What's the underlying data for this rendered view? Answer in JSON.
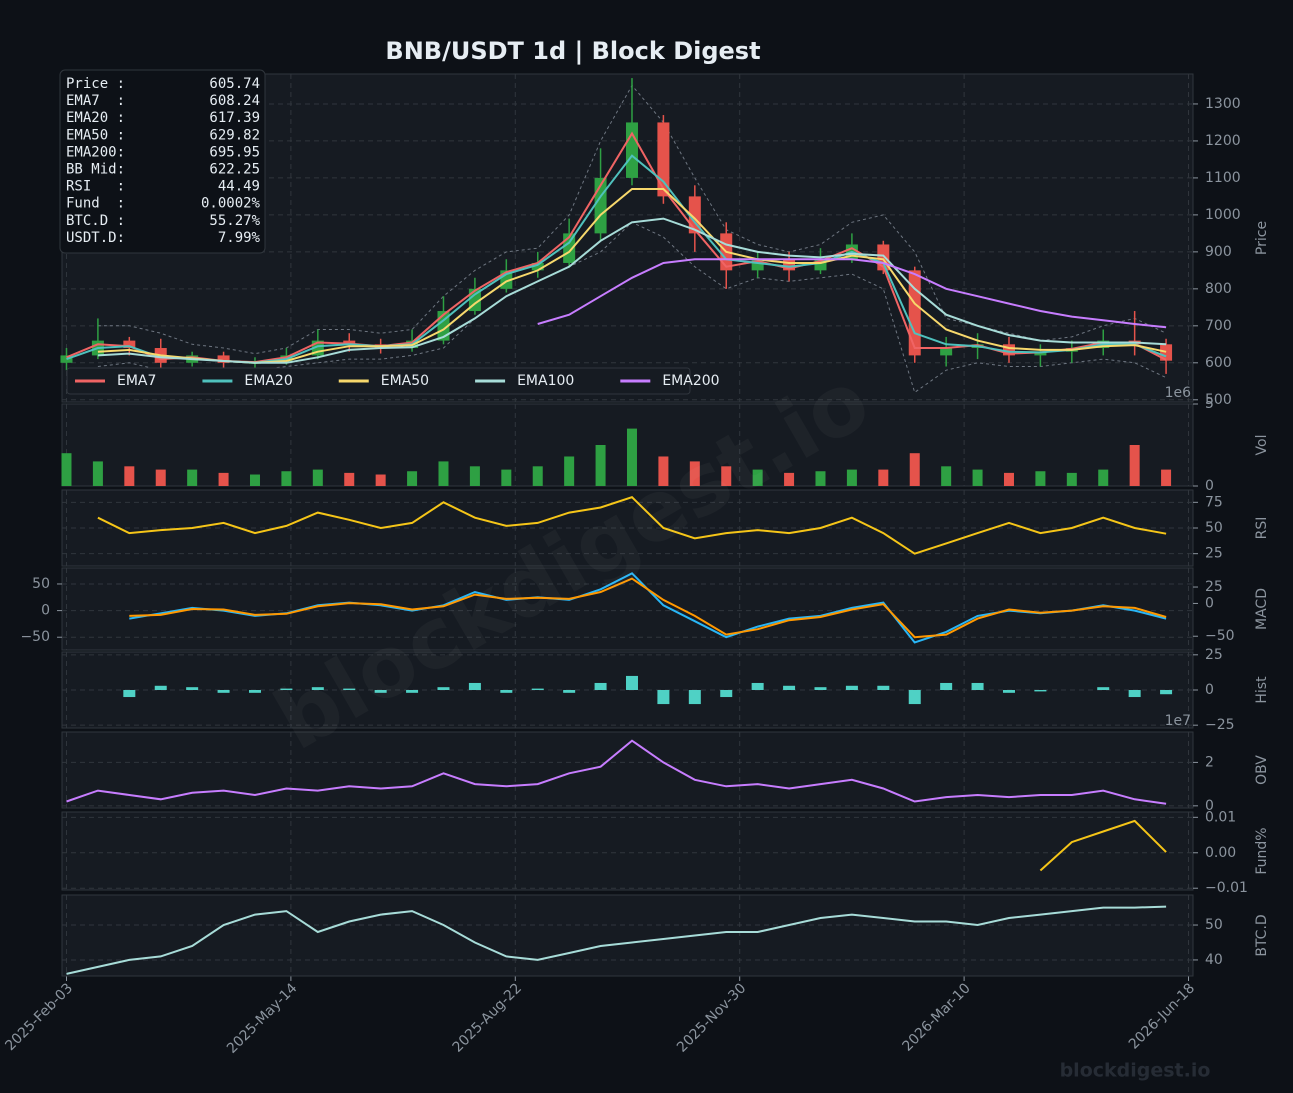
{
  "title": "BNB/USDT  1d  |  Block Digest",
  "watermark": "blockdigest.io",
  "x": [
    "2025-Feb-03",
    "2025-Feb-17",
    "2025-Mar-03",
    "2025-Mar-17",
    "2025-Mar-31",
    "2025-Apr-14",
    "2025-Apr-28",
    "2025-May-12",
    "2025-May-26",
    "2025-Jun-09",
    "2025-Jun-23",
    "2025-Jul-07",
    "2025-Jul-21",
    "2025-Aug-04",
    "2025-Aug-18",
    "2025-Sep-01",
    "2025-Sep-15",
    "2025-Sep-29",
    "2025-Oct-13",
    "2025-Oct-27",
    "2025-Nov-10",
    "2025-Nov-24",
    "2025-Dec-08",
    "2025-Dec-22",
    "2026-Jan-05",
    "2026-Jan-19",
    "2026-Feb-02",
    "2026-Feb-16",
    "2026-Mar-02",
    "2026-Mar-16",
    "2026-Mar-30",
    "2026-Apr-13",
    "2026-Apr-27",
    "2026-May-11",
    "2026-May-25",
    "2026-Jun-08"
  ],
  "xlim": [
    "2025-Feb-01",
    "2026-Jun-20"
  ],
  "xticks": [
    "2025-Feb-03",
    "2025-May-14",
    "2025-Aug-22",
    "2025-Nov-30",
    "2026-Mar-10",
    "2026-Jun-18"
  ],
  "info": [
    [
      "Price :",
      "605.74"
    ],
    [
      "EMA7  :",
      "608.24"
    ],
    [
      "EMA20 :",
      "617.39"
    ],
    [
      "EMA50 :",
      "629.82"
    ],
    [
      "EMA200:",
      "695.95"
    ],
    [
      "BB Mid:",
      "622.25"
    ],
    [
      "RSI   :",
      "44.49"
    ],
    [
      "Fund  :",
      "0.0002%"
    ],
    [
      "BTC.D :",
      "55.27%"
    ],
    [
      "USDT.D:",
      "7.99%"
    ]
  ],
  "chart_data": [
    {
      "type": "candlestick",
      "ylabel": "Price",
      "y_axis_side": "right",
      "grid": true,
      "legend": "lower left",
      "up_color": "#2ea043",
      "down_color": "#e5534b",
      "ylim": [
        494,
        1381
      ],
      "yticks": [
        500,
        600,
        700,
        800,
        900,
        1000,
        1100,
        1200,
        1300
      ],
      "open": [
        600,
        620,
        660,
        640,
        600,
        620,
        600,
        600,
        620,
        660,
        650,
        640,
        660,
        740,
        800,
        850,
        870,
        950,
        1100,
        1250,
        1050,
        950,
        850,
        880,
        850,
        880,
        920,
        850,
        620,
        640,
        650,
        620,
        630,
        640,
        660,
        650
      ],
      "high": [
        640,
        720,
        670,
        665,
        630,
        630,
        615,
        640,
        690,
        680,
        665,
        690,
        780,
        830,
        880,
        900,
        990,
        1180,
        1370,
        1270,
        1080,
        980,
        900,
        900,
        910,
        950,
        930,
        860,
        670,
        680,
        670,
        650,
        660,
        690,
        740,
        665
      ],
      "low": [
        580,
        610,
        620,
        585,
        590,
        585,
        585,
        595,
        610,
        630,
        625,
        630,
        650,
        730,
        790,
        830,
        860,
        930,
        1080,
        1030,
        900,
        800,
        830,
        820,
        840,
        870,
        840,
        600,
        590,
        610,
        600,
        590,
        600,
        620,
        620,
        570
      ],
      "close": [
        620,
        660,
        640,
        600,
        620,
        600,
        600,
        620,
        660,
        650,
        640,
        660,
        740,
        800,
        850,
        870,
        950,
        1100,
        1250,
        1050,
        950,
        850,
        880,
        850,
        880,
        920,
        850,
        620,
        640,
        650,
        620,
        630,
        640,
        660,
        650,
        605.74
      ],
      "bollinger": {
        "color": "#6e7681",
        "upper": [
          null,
          700,
          700,
          680,
          650,
          640,
          625,
          640,
          690,
          690,
          680,
          690,
          780,
          850,
          900,
          910,
          1000,
          1200,
          1350,
          1250,
          1100,
          960,
          920,
          900,
          920,
          980,
          1000,
          900,
          720,
          700,
          680,
          660,
          670,
          700,
          720,
          680
        ],
        "lower": [
          null,
          590,
          600,
          580,
          580,
          580,
          580,
          590,
          600,
          610,
          610,
          620,
          640,
          720,
          780,
          820,
          860,
          900,
          980,
          940,
          860,
          800,
          830,
          820,
          830,
          840,
          800,
          520,
          580,
          600,
          590,
          590,
          600,
          610,
          600,
          560
        ]
      },
      "series": [
        {
          "name": "EMA7",
          "color": "#f06464",
          "values": [
            615,
            650,
            645,
            610,
            615,
            605,
            602,
            615,
            655,
            652,
            645,
            655,
            730,
            795,
            845,
            870,
            940,
            1080,
            1220,
            1070,
            960,
            860,
            875,
            855,
            875,
            910,
            860,
            640,
            640,
            648,
            625,
            628,
            638,
            655,
            652,
            608.24
          ]
        },
        {
          "name": "EMA20",
          "color": "#4fc1bd",
          "values": [
            610,
            640,
            645,
            615,
            612,
            605,
            600,
            610,
            645,
            650,
            645,
            650,
            715,
            785,
            840,
            865,
            925,
            1050,
            1160,
            1090,
            980,
            880,
            870,
            860,
            870,
            900,
            870,
            680,
            650,
            645,
            630,
            628,
            635,
            650,
            650,
            617.39
          ]
        },
        {
          "name": "EMA50",
          "color": "#f7d86c",
          "values": [
            null,
            630,
            635,
            620,
            612,
            605,
            600,
            605,
            630,
            645,
            645,
            648,
            690,
            760,
            820,
            850,
            900,
            1000,
            1070,
            1070,
            990,
            900,
            880,
            870,
            870,
            890,
            880,
            760,
            690,
            660,
            640,
            635,
            635,
            645,
            648,
            629.82
          ]
        },
        {
          "name": "EMA100",
          "color": "#a7dcd8",
          "values": [
            null,
            620,
            625,
            615,
            610,
            605,
            600,
            600,
            615,
            635,
            640,
            642,
            670,
            720,
            780,
            820,
            860,
            930,
            980,
            990,
            960,
            920,
            900,
            890,
            885,
            895,
            890,
            800,
            730,
            700,
            675,
            660,
            655,
            655,
            655,
            650
          ]
        },
        {
          "name": "EMA200",
          "color": "#c77dff",
          "values": [
            null,
            null,
            null,
            null,
            null,
            null,
            null,
            null,
            null,
            null,
            null,
            null,
            null,
            null,
            null,
            705,
            730,
            780,
            830,
            870,
            880,
            880,
            880,
            880,
            880,
            880,
            870,
            840,
            800,
            780,
            760,
            740,
            725,
            715,
            705,
            695.95
          ]
        }
      ]
    },
    {
      "type": "volume",
      "ylabel": "Vol",
      "y_axis_side": "right",
      "grid": true,
      "offset_label": "1e6",
      "up_color": "#2ea043",
      "down_color": "#e5534b",
      "ylim": [
        0,
        5
      ],
      "yticks": [
        0,
        5
      ],
      "values": [
        2.0,
        1.5,
        1.2,
        1.0,
        1.0,
        0.8,
        0.7,
        0.9,
        1.0,
        0.8,
        0.7,
        0.9,
        1.5,
        1.2,
        1.0,
        1.2,
        1.8,
        2.5,
        3.5,
        1.8,
        1.5,
        1.2,
        1.0,
        0.8,
        0.9,
        1.0,
        1.0,
        2.0,
        1.2,
        1.0,
        0.8,
        0.9,
        0.8,
        1.0,
        2.5,
        1.0
      ]
    },
    {
      "type": "line",
      "ylabel": "RSI",
      "y_axis_side": "right",
      "grid": true,
      "ylim": [
        13,
        87
      ],
      "yticks": [
        25,
        50,
        75
      ],
      "series": [
        {
          "color": "#f5c518",
          "values": [
            null,
            60,
            45,
            48,
            50,
            55,
            45,
            52,
            65,
            58,
            50,
            55,
            75,
            60,
            52,
            55,
            65,
            70,
            80,
            50,
            40,
            45,
            48,
            45,
            50,
            60,
            45,
            25,
            35,
            45,
            55,
            45,
            50,
            60,
            50,
            44.49
          ]
        }
      ]
    },
    {
      "type": "line",
      "ylabel": "MACD",
      "y_axis_side": "left",
      "grid": true,
      "ylim": [
        -74,
        80
      ],
      "yticks": [
        50,
        0,
        {
          "value": -50,
          "label": "−50"
        }
      ],
      "y2lim": [
        -71,
        54
      ],
      "y2ticks": [
        25,
        0,
        {
          "value": -50,
          "label": "−50"
        }
      ],
      "series": [
        {
          "color": "#29b6f6",
          "values": [
            null,
            null,
            -15,
            -5,
            5,
            0,
            -10,
            -5,
            10,
            15,
            10,
            0,
            10,
            35,
            20,
            25,
            20,
            40,
            70,
            10,
            -20,
            -50,
            -30,
            -15,
            -10,
            5,
            15,
            -60,
            -40,
            -10,
            0,
            -5,
            0,
            10,
            0,
            -15
          ]
        },
        {
          "color": "#ff9800",
          "values": [
            null,
            null,
            -10,
            -8,
            3,
            2,
            -8,
            -6,
            8,
            14,
            12,
            2,
            8,
            30,
            22,
            24,
            22,
            35,
            60,
            20,
            -10,
            -45,
            -35,
            -18,
            -12,
            2,
            12,
            -50,
            -45,
            -15,
            2,
            -4,
            0,
            8,
            5,
            -12
          ]
        }
      ]
    },
    {
      "type": "hist",
      "ylabel": "Hist",
      "y_axis_side": "right",
      "grid": true,
      "color": "#4fd1c5",
      "ylim": [
        -27,
        27
      ],
      "yticks": [
        25,
        0,
        {
          "value": -25,
          "label": "−25"
        }
      ],
      "values": [
        null,
        null,
        -5,
        3,
        2,
        -2,
        -2,
        1,
        2,
        1,
        -2,
        -2,
        2,
        5,
        -2,
        1,
        -2,
        5,
        10,
        -10,
        -10,
        -5,
        5,
        3,
        2,
        3,
        3,
        -10,
        5,
        5,
        -2,
        -1,
        0,
        2,
        -5,
        -3
      ]
    },
    {
      "type": "line",
      "ylabel": "OBV",
      "y_axis_side": "right",
      "grid": true,
      "offset_label": "1e7",
      "ylim": [
        -0.1,
        3.4
      ],
      "yticks": [
        0,
        2
      ],
      "series": [
        {
          "color": "#c77dff",
          "values": [
            0.2,
            0.7,
            0.5,
            0.3,
            0.6,
            0.7,
            0.5,
            0.8,
            0.7,
            0.9,
            0.8,
            0.9,
            1.5,
            1.0,
            0.9,
            1.0,
            1.5,
            1.8,
            3.0,
            2.0,
            1.2,
            0.9,
            1.0,
            0.8,
            1.0,
            1.2,
            0.8,
            0.2,
            0.4,
            0.5,
            0.4,
            0.5,
            0.5,
            0.7,
            0.3,
            0.1
          ]
        }
      ]
    },
    {
      "type": "line",
      "ylabel": "Fund%",
      "y_axis_side": "right",
      "grid": true,
      "ylim": [
        -0.0105,
        0.0115
      ],
      "yticks": [
        0.01,
        {
          "value": 0,
          "label": "0.00"
        },
        {
          "value": -0.01,
          "label": "−0.01"
        }
      ],
      "series": [
        {
          "color": "#f5c518",
          "values": [
            null,
            null,
            null,
            null,
            null,
            null,
            null,
            null,
            null,
            null,
            null,
            null,
            null,
            null,
            null,
            null,
            null,
            null,
            null,
            null,
            null,
            null,
            null,
            null,
            null,
            null,
            null,
            null,
            null,
            null,
            null,
            -0.005,
            0.003,
            0.006,
            0.009,
            0.0002
          ]
        }
      ]
    },
    {
      "type": "line",
      "ylabel": "BTC.D",
      "y_axis_side": "right",
      "grid": true,
      "ylim": [
        35.4,
        58.6
      ],
      "yticks": [
        40,
        50
      ],
      "series": [
        {
          "color": "#a7dcd8",
          "values": [
            36,
            38,
            40,
            41,
            44,
            50,
            53,
            54,
            48,
            51,
            53,
            54,
            50,
            45,
            41,
            40,
            42,
            44,
            45,
            46,
            47,
            48,
            48,
            50,
            52,
            53,
            52,
            51,
            51,
            50,
            52,
            53,
            54,
            55,
            55,
            55.27
          ]
        }
      ]
    }
  ]
}
